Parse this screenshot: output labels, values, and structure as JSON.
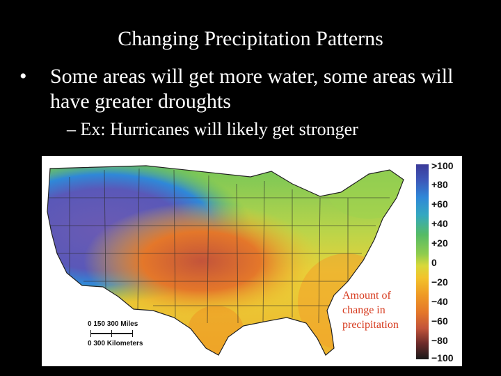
{
  "slide": {
    "title": "Changing Precipitation Patterns",
    "bullet_marker": "•",
    "bullet_text": "Some areas will get more water, some areas will have greater droughts",
    "sub_bullet": "– Ex: Hurricanes will likely get stronger"
  },
  "map": {
    "caption": "Amount of change in precipitation",
    "scale_miles": "0   150  300 Miles",
    "scale_km": "0      300 Kilometers",
    "legend_labels": [
      ">100",
      "+80",
      "+60",
      "+40",
      "+20",
      "0",
      "−20",
      "−40",
      "−60",
      "−80",
      "−100"
    ],
    "colors": {
      "wet_extreme": "#3b3a99",
      "wet": "#2f88d8",
      "moderate_wet": "#55bb66",
      "neutral": "#d8d83a",
      "dry": "#ef9a25",
      "very_dry": "#c3543a",
      "dry_extreme": "#1a1a1a"
    }
  }
}
